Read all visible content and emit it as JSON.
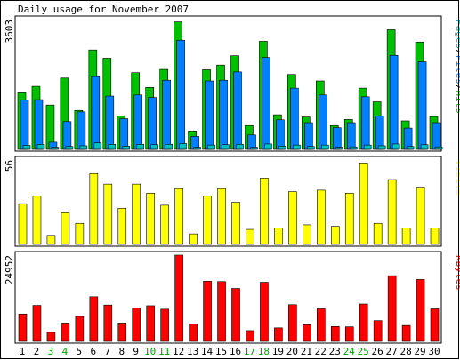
{
  "chart_data": [
    {
      "type": "bar",
      "title": "Daily usage for November 2007",
      "ylabel_max": "3603",
      "legend": {
        "pages": "Pages",
        "files": "Files",
        "hits": "Hits"
      },
      "colors": {
        "hits": "#00c000",
        "files": "#0080ff",
        "pages": "#00c0c0"
      },
      "ylim": [
        0,
        3603
      ],
      "categories": [
        "1",
        "2",
        "3",
        "4",
        "5",
        "6",
        "7",
        "8",
        "9",
        "10",
        "11",
        "12",
        "13",
        "14",
        "15",
        "16",
        "17",
        "18",
        "19",
        "20",
        "21",
        "22",
        "23",
        "24",
        "25",
        "26",
        "27",
        "28",
        "29",
        "30"
      ],
      "weekend_days": [
        "3",
        "4",
        "10",
        "11",
        "17",
        "18",
        "24",
        "25"
      ],
      "series": [
        {
          "name": "Hits",
          "values": [
            1570,
            1750,
            1230,
            1980,
            1080,
            2760,
            2530,
            920,
            2130,
            1720,
            2220,
            3540,
            510,
            2210,
            2340,
            2600,
            660,
            3000,
            960,
            2080,
            900,
            1900,
            660,
            830,
            1700,
            1320,
            3320,
            790,
            2980,
            910
          ]
        },
        {
          "name": "Files",
          "values": [
            1370,
            1380,
            200,
            770,
            1040,
            2020,
            1480,
            850,
            1510,
            1440,
            1920,
            3030,
            360,
            1900,
            1920,
            2150,
            400,
            2550,
            820,
            1700,
            740,
            1510,
            600,
            740,
            1460,
            920,
            2610,
            590,
            2430,
            740
          ]
        },
        {
          "name": "Pages",
          "values": [
            110,
            140,
            60,
            80,
            100,
            180,
            140,
            90,
            140,
            130,
            140,
            160,
            60,
            120,
            130,
            140,
            60,
            150,
            90,
            120,
            80,
            120,
            60,
            70,
            120,
            100,
            150,
            80,
            130,
            70
          ]
        }
      ]
    },
    {
      "type": "bar",
      "ylabel_max": "56",
      "legend": {
        "visits": "Visits"
      },
      "colors": {
        "visits": "#ffff00"
      },
      "ylim": [
        0,
        56
      ],
      "categories": [
        "1",
        "2",
        "3",
        "4",
        "5",
        "6",
        "7",
        "8",
        "9",
        "10",
        "11",
        "12",
        "13",
        "14",
        "15",
        "16",
        "17",
        "18",
        "19",
        "20",
        "21",
        "22",
        "23",
        "24",
        "25",
        "26",
        "27",
        "28",
        "29",
        "30"
      ],
      "series": [
        {
          "name": "Visits",
          "values": [
            27,
            32,
            6,
            21,
            14,
            47,
            40,
            24,
            40,
            34,
            26,
            37,
            7,
            32,
            37,
            28,
            10,
            44,
            11,
            35,
            13,
            36,
            12,
            34,
            54,
            14,
            43,
            11,
            38,
            11
          ]
        }
      ]
    },
    {
      "type": "bar",
      "ylabel_max": "24952",
      "legend": {
        "kbytes": "KBytes"
      },
      "colors": {
        "kbytes": "#ff0000"
      },
      "ylim": [
        0,
        24952
      ],
      "categories": [
        "1",
        "2",
        "3",
        "4",
        "5",
        "6",
        "7",
        "8",
        "9",
        "10",
        "11",
        "12",
        "13",
        "14",
        "15",
        "16",
        "17",
        "18",
        "19",
        "20",
        "21",
        "22",
        "23",
        "24",
        "25",
        "26",
        "27",
        "28",
        "29",
        "30"
      ],
      "series": [
        {
          "name": "KBytes",
          "values": [
            7900,
            10400,
            2600,
            5300,
            7200,
            12900,
            10500,
            5300,
            9600,
            10300,
            9300,
            24952,
            5000,
            17400,
            17300,
            15300,
            3100,
            17100,
            3900,
            10600,
            4800,
            9400,
            4300,
            4200,
            10800,
            6000,
            19000,
            4600,
            17900,
            9400
          ]
        }
      ]
    }
  ]
}
